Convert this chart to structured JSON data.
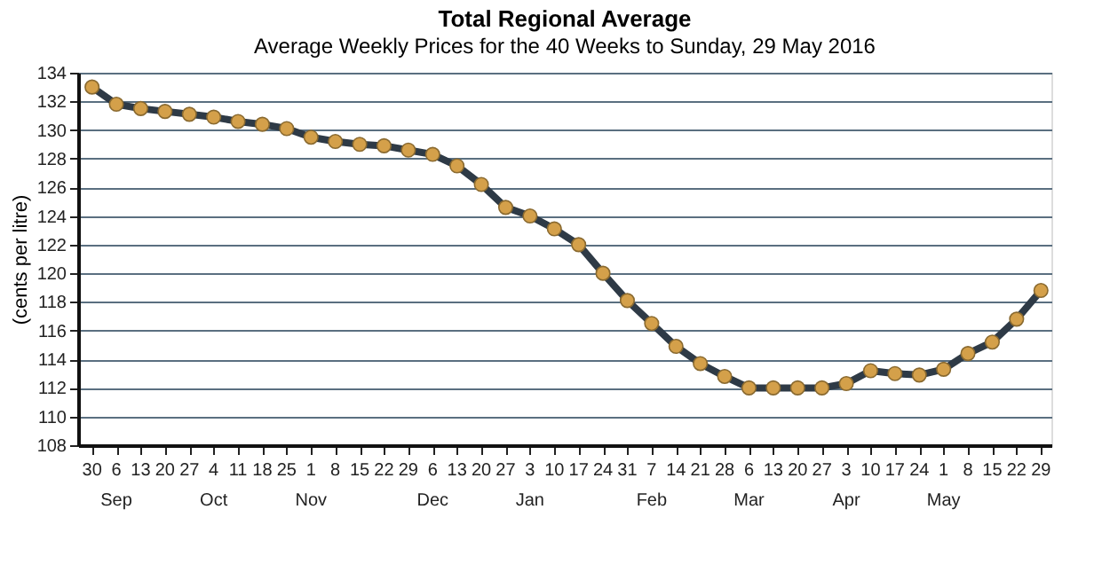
{
  "chart_data": {
    "type": "line",
    "title": "Total Regional Average",
    "subtitle": "Average Weekly Prices for the 40 Weeks to Sunday, 29 May 2016",
    "ylabel": "(cents per litre)",
    "x": [
      "2015-08-30",
      "2015-09-06",
      "2015-09-13",
      "2015-09-20",
      "2015-09-27",
      "2015-10-04",
      "2015-10-11",
      "2015-10-18",
      "2015-10-25",
      "2015-11-01",
      "2015-11-08",
      "2015-11-15",
      "2015-11-22",
      "2015-11-29",
      "2015-12-06",
      "2015-12-13",
      "2015-12-20",
      "2015-12-27",
      "2016-01-03",
      "2016-01-10",
      "2016-01-17",
      "2016-01-24",
      "2016-01-31",
      "2016-02-07",
      "2016-02-14",
      "2016-02-21",
      "2016-02-28",
      "2016-03-06",
      "2016-03-13",
      "2016-03-20",
      "2016-03-27",
      "2016-04-03",
      "2016-04-10",
      "2016-04-17",
      "2016-04-24",
      "2016-05-01",
      "2016-05-08",
      "2016-05-15",
      "2016-05-22",
      "2016-05-29"
    ],
    "series": [
      {
        "color": "#2e3a46",
        "values": [
          133.0,
          131.8,
          131.5,
          131.3,
          131.1,
          130.9,
          130.6,
          130.4,
          130.1,
          129.5,
          129.2,
          129.0,
          128.9,
          128.6,
          128.3,
          127.5,
          126.2,
          124.6,
          124.0,
          123.1,
          122.0,
          120.0,
          118.1,
          116.5,
          114.9,
          113.7,
          112.8,
          112.0,
          112.0,
          112.0,
          112.0,
          112.3,
          113.2,
          113.0,
          112.9,
          113.3,
          114.4,
          115.2,
          116.8,
          118.8
        ]
      }
    ],
    "xlim": [
      "2015-08-26",
      "2016-06-01"
    ],
    "xticks": [
      {
        "value": "2015-08-30",
        "label": "30"
      },
      {
        "value": "2015-09-06",
        "label": "6\nSep"
      },
      {
        "value": "2015-09-13",
        "label": "13"
      },
      {
        "value": "2015-09-20",
        "label": "20"
      },
      {
        "value": "2015-09-27",
        "label": "27"
      },
      {
        "value": "2015-10-04",
        "label": "4\nOct"
      },
      {
        "value": "2015-10-11",
        "label": "11"
      },
      {
        "value": "2015-10-18",
        "label": "18"
      },
      {
        "value": "2015-10-25",
        "label": "25"
      },
      {
        "value": "2015-11-01",
        "label": "1\nNov"
      },
      {
        "value": "2015-11-08",
        "label": "8"
      },
      {
        "value": "2015-11-15",
        "label": "15"
      },
      {
        "value": "2015-11-22",
        "label": "22"
      },
      {
        "value": "2015-11-29",
        "label": "29"
      },
      {
        "value": "2015-12-06",
        "label": "6\nDec"
      },
      {
        "value": "2015-12-13",
        "label": "13"
      },
      {
        "value": "2015-12-20",
        "label": "20"
      },
      {
        "value": "2015-12-27",
        "label": "27"
      },
      {
        "value": "2016-01-03",
        "label": "3\nJan"
      },
      {
        "value": "2016-01-10",
        "label": "10"
      },
      {
        "value": "2016-01-17",
        "label": "17"
      },
      {
        "value": "2016-01-24",
        "label": "24"
      },
      {
        "value": "2016-01-31",
        "label": "31"
      },
      {
        "value": "2016-02-07",
        "label": "7\nFeb"
      },
      {
        "value": "2016-02-14",
        "label": "14"
      },
      {
        "value": "2016-02-21",
        "label": "21"
      },
      {
        "value": "2016-02-28",
        "label": "28"
      },
      {
        "value": "2016-03-06",
        "label": "6\nMar"
      },
      {
        "value": "2016-03-13",
        "label": "13"
      },
      {
        "value": "2016-03-20",
        "label": "20"
      },
      {
        "value": "2016-03-27",
        "label": "27"
      },
      {
        "value": "2016-04-03",
        "label": "3\nApr"
      },
      {
        "value": "2016-04-10",
        "label": "10"
      },
      {
        "value": "2016-04-17",
        "label": "17"
      },
      {
        "value": "2016-04-24",
        "label": "24"
      },
      {
        "value": "2016-05-01",
        "label": "1\nMay"
      },
      {
        "value": "2016-05-08",
        "label": "8"
      },
      {
        "value": "2016-05-15",
        "label": "15"
      },
      {
        "value": "2016-05-22",
        "label": "22"
      },
      {
        "value": "2016-05-29",
        "label": "29"
      }
    ],
    "ylim": [
      108,
      134
    ],
    "yticks": [
      108,
      110,
      112,
      114,
      116,
      118,
      120,
      122,
      124,
      126,
      128,
      130,
      132,
      134
    ],
    "grid": "y",
    "marker": "circle",
    "line_style": "solid"
  }
}
